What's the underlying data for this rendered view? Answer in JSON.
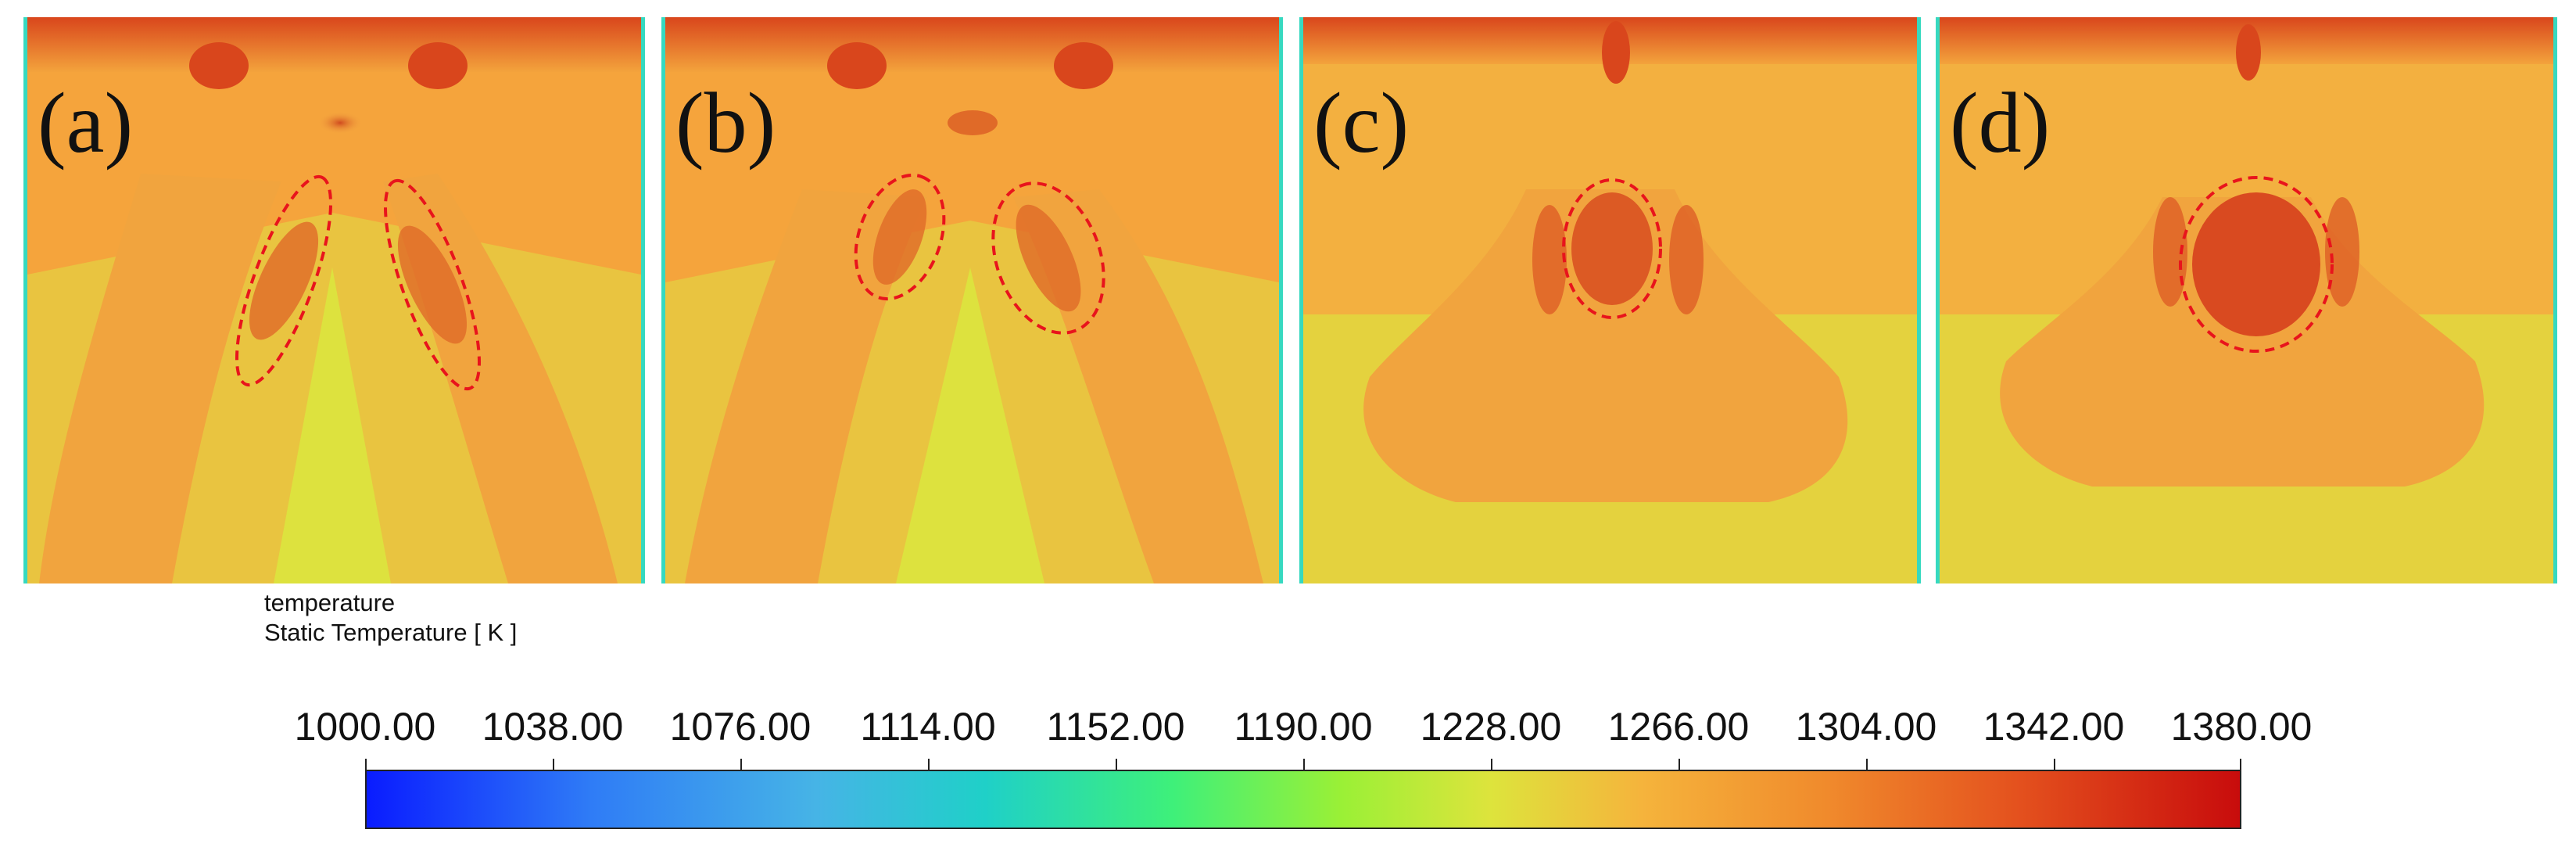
{
  "panels": [
    {
      "label": "(a)"
    },
    {
      "label": "(b)"
    },
    {
      "label": "(c)"
    },
    {
      "label": "(d)"
    }
  ],
  "legend": {
    "variable": "temperature",
    "quantity": "Static Temperature [ K ]",
    "ticks": [
      "1000.00",
      "1038.00",
      "1076.00",
      "1114.00",
      "1152.00",
      "1190.00",
      "1228.00",
      "1266.00",
      "1304.00",
      "1342.00",
      "1380.00"
    ]
  },
  "colors": {
    "background": "#f5a43c",
    "hot": "#d9461c",
    "cool": "#dce23c",
    "boundary": "#36d9c0",
    "marker": "#e8141c"
  }
}
